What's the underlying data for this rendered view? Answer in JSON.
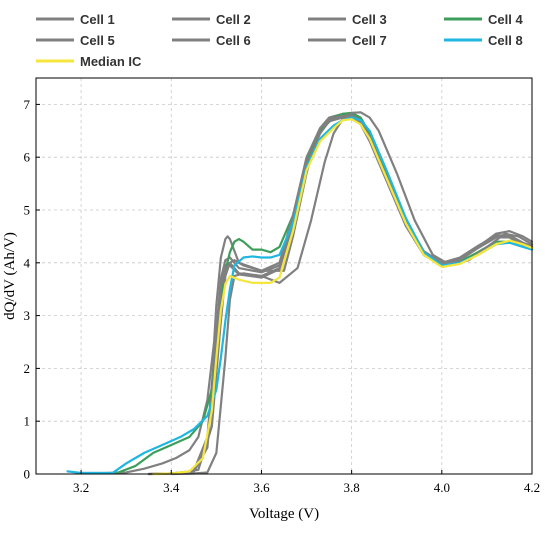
{
  "chart_data": {
    "type": "line",
    "title": "",
    "xlabel": "Voltage (V)",
    "ylabel": "dQ/dV (Ah/V)",
    "xlim": [
      3.1,
      4.2
    ],
    "ylim": [
      0,
      7.5
    ],
    "x_ticks": [
      3.2,
      3.4,
      3.6,
      3.8,
      4.0,
      4.2
    ],
    "y_ticks": [
      0,
      1,
      2,
      3,
      4,
      5,
      6,
      7
    ],
    "x_tick_labels": [
      "3.2",
      "3.4",
      "3.6",
      "3.8",
      "4.0",
      "4.2"
    ],
    "y_tick_labels": [
      "0",
      "1",
      "2",
      "3",
      "4",
      "5",
      "6",
      "7"
    ],
    "grid": true,
    "legend_position": "top",
    "series": [
      {
        "name": "Cell 1",
        "color": "#808080",
        "x": [
          3.35,
          3.4,
          3.45,
          3.48,
          3.5,
          3.51,
          3.52,
          3.53,
          3.55,
          3.6,
          3.64,
          3.67,
          3.7,
          3.73,
          3.75,
          3.78,
          3.8,
          3.82,
          3.84,
          3.88,
          3.92,
          3.96,
          4.0,
          4.04,
          4.08,
          4.12,
          4.15,
          4.18,
          4.2
        ],
        "y": [
          0.0,
          0.01,
          0.05,
          0.6,
          2.5,
          3.6,
          3.95,
          4.0,
          3.8,
          3.75,
          3.9,
          4.8,
          5.9,
          6.5,
          6.7,
          6.78,
          6.8,
          6.7,
          6.4,
          5.6,
          4.8,
          4.2,
          4.0,
          4.08,
          4.3,
          4.5,
          4.5,
          4.35,
          4.3
        ]
      },
      {
        "name": "Cell 2",
        "color": "#808080",
        "x": [
          3.36,
          3.4,
          3.45,
          3.48,
          3.5,
          3.51,
          3.52,
          3.53,
          3.55,
          3.6,
          3.64,
          3.67,
          3.7,
          3.73,
          3.75,
          3.78,
          3.8,
          3.82,
          3.84,
          3.88,
          3.92,
          3.96,
          4.0,
          4.04,
          4.08,
          4.12,
          4.15,
          4.18,
          4.2
        ],
        "y": [
          0.0,
          0.01,
          0.06,
          0.7,
          2.7,
          3.7,
          4.05,
          4.1,
          3.9,
          3.82,
          3.95,
          4.85,
          5.95,
          6.55,
          6.75,
          6.82,
          6.82,
          6.72,
          6.42,
          5.62,
          4.82,
          4.22,
          4.0,
          4.1,
          4.32,
          4.52,
          4.52,
          4.38,
          4.32
        ]
      },
      {
        "name": "Cell 3",
        "color": "#808080",
        "x": [
          3.2,
          3.25,
          3.3,
          3.34,
          3.38,
          3.41,
          3.44,
          3.46,
          3.48,
          3.495,
          3.5,
          3.51,
          3.52,
          3.525,
          3.53,
          3.55,
          3.6,
          3.65,
          3.67,
          3.7,
          3.72,
          3.74,
          3.76,
          3.78,
          3.8,
          3.82,
          3.84,
          3.88,
          3.92,
          3.96,
          4.0,
          4.04,
          4.08,
          4.12,
          4.15,
          4.18,
          4.2
        ],
        "y": [
          0.02,
          0.02,
          0.03,
          0.1,
          0.2,
          0.3,
          0.45,
          0.7,
          1.4,
          2.5,
          3.2,
          4.1,
          4.45,
          4.5,
          4.45,
          4.0,
          3.85,
          3.85,
          4.5,
          5.7,
          6.3,
          6.6,
          6.75,
          6.8,
          6.78,
          6.62,
          6.3,
          5.5,
          4.7,
          4.15,
          3.95,
          4.05,
          4.3,
          4.55,
          4.6,
          4.5,
          4.4
        ]
      },
      {
        "name": "Cell 4",
        "color": "#3c9e5a",
        "x": [
          3.28,
          3.32,
          3.36,
          3.4,
          3.44,
          3.47,
          3.49,
          3.5,
          3.51,
          3.52,
          3.53,
          3.54,
          3.55,
          3.56,
          3.58,
          3.6,
          3.62,
          3.64,
          3.67,
          3.7,
          3.73,
          3.76,
          3.78,
          3.8,
          3.82,
          3.84,
          3.88,
          3.92,
          3.96,
          4.0,
          4.04,
          4.08,
          4.12,
          4.15,
          4.18,
          4.2
        ],
        "y": [
          0.02,
          0.15,
          0.4,
          0.55,
          0.7,
          1.0,
          1.6,
          2.4,
          3.3,
          3.85,
          4.2,
          4.4,
          4.45,
          4.4,
          4.25,
          4.25,
          4.2,
          4.3,
          4.9,
          5.9,
          6.5,
          6.75,
          6.82,
          6.84,
          6.75,
          6.45,
          5.6,
          4.75,
          4.15,
          3.95,
          4.02,
          4.2,
          4.4,
          4.4,
          4.35,
          4.28
        ]
      },
      {
        "name": "Cell 5",
        "color": "#808080",
        "x": [
          3.4,
          3.45,
          3.48,
          3.5,
          3.52,
          3.53,
          3.54,
          3.56,
          3.6,
          3.64,
          3.68,
          3.71,
          3.74,
          3.76,
          3.78,
          3.8,
          3.82,
          3.84,
          3.86,
          3.9,
          3.94,
          3.98,
          4.02,
          4.06,
          4.1,
          4.14,
          4.17,
          4.2
        ],
        "y": [
          0.0,
          0.01,
          0.03,
          0.4,
          2.2,
          3.3,
          3.75,
          3.8,
          3.75,
          3.62,
          3.9,
          4.8,
          5.9,
          6.45,
          6.72,
          6.84,
          6.85,
          6.75,
          6.5,
          5.7,
          4.8,
          4.15,
          3.95,
          4.05,
          4.3,
          4.55,
          4.5,
          4.35
        ]
      },
      {
        "name": "Cell 6",
        "color": "#808080",
        "x": [
          3.37,
          3.42,
          3.46,
          3.49,
          3.51,
          3.52,
          3.53,
          3.54,
          3.56,
          3.6,
          3.64,
          3.67,
          3.7,
          3.73,
          3.75,
          3.78,
          3.8,
          3.82,
          3.84,
          3.88,
          3.92,
          3.96,
          4.0,
          4.04,
          4.08,
          4.12,
          4.15,
          4.18,
          4.2
        ],
        "y": [
          0.0,
          0.02,
          0.08,
          0.9,
          2.9,
          3.75,
          4.0,
          4.05,
          3.95,
          3.85,
          4.0,
          4.9,
          6.0,
          6.55,
          6.72,
          6.78,
          6.77,
          6.65,
          6.35,
          5.55,
          4.75,
          4.15,
          3.95,
          4.05,
          4.28,
          4.48,
          4.48,
          4.35,
          4.3
        ]
      },
      {
        "name": "Cell 7",
        "color": "#808080",
        "x": [
          3.35,
          3.4,
          3.45,
          3.48,
          3.5,
          3.51,
          3.52,
          3.53,
          3.55,
          3.6,
          3.64,
          3.67,
          3.7,
          3.73,
          3.75,
          3.78,
          3.8,
          3.82,
          3.84,
          3.88,
          3.92,
          3.96,
          4.0,
          4.04,
          4.08,
          4.12,
          4.15,
          4.18,
          4.2
        ],
        "y": [
          0.0,
          0.01,
          0.04,
          0.5,
          2.4,
          3.55,
          3.9,
          3.95,
          3.78,
          3.72,
          3.88,
          4.75,
          5.85,
          6.45,
          6.68,
          6.75,
          6.78,
          6.68,
          6.38,
          5.58,
          4.78,
          4.18,
          3.98,
          4.06,
          4.28,
          4.48,
          4.48,
          4.34,
          4.28
        ]
      },
      {
        "name": "Cell 8",
        "color": "#1fb6e0",
        "x": [
          3.17,
          3.2,
          3.24,
          3.27,
          3.3,
          3.34,
          3.38,
          3.42,
          3.45,
          3.48,
          3.5,
          3.51,
          3.52,
          3.53,
          3.54,
          3.56,
          3.58,
          3.6,
          3.62,
          3.64,
          3.67,
          3.7,
          3.73,
          3.76,
          3.78,
          3.8,
          3.82,
          3.84,
          3.88,
          3.92,
          3.96,
          4.0,
          4.04,
          4.08,
          4.12,
          4.15,
          4.18,
          4.2
        ],
        "y": [
          0.05,
          0.02,
          0.02,
          0.02,
          0.2,
          0.4,
          0.55,
          0.7,
          0.85,
          1.1,
          1.6,
          2.2,
          2.9,
          3.5,
          3.95,
          4.1,
          4.12,
          4.1,
          4.1,
          4.15,
          4.75,
          5.8,
          6.35,
          6.6,
          6.7,
          6.75,
          6.7,
          6.5,
          5.7,
          4.85,
          4.2,
          3.95,
          4.0,
          4.15,
          4.35,
          4.38,
          4.3,
          4.25
        ]
      },
      {
        "name": "Median IC",
        "color": "#f5e63d",
        "x": [
          3.36,
          3.4,
          3.44,
          3.47,
          3.49,
          3.5,
          3.51,
          3.52,
          3.53,
          3.55,
          3.58,
          3.62,
          3.64,
          3.67,
          3.7,
          3.73,
          3.76,
          3.78,
          3.8,
          3.82,
          3.84,
          3.88,
          3.92,
          3.96,
          4.0,
          4.04,
          4.08,
          4.12,
          4.15,
          4.18,
          4.2
        ],
        "y": [
          0.0,
          0.01,
          0.05,
          0.3,
          1.2,
          2.2,
          3.1,
          3.6,
          3.75,
          3.68,
          3.62,
          3.62,
          3.72,
          4.6,
          5.75,
          6.3,
          6.55,
          6.7,
          6.72,
          6.62,
          6.35,
          5.55,
          4.75,
          4.15,
          3.92,
          3.98,
          4.15,
          4.35,
          4.42,
          4.35,
          4.28
        ]
      }
    ]
  }
}
